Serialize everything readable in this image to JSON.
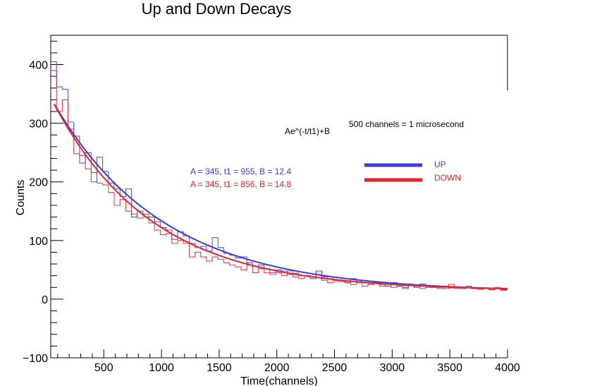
{
  "chart_data": {
    "type": "line",
    "title": "Up and Down Decays",
    "xlabel": "Time(channels)",
    "ylabel": "Counts",
    "xlim": [
      40,
      4000
    ],
    "ylim": [
      -100,
      450
    ],
    "x_ticks": [
      500,
      1000,
      1500,
      2000,
      2500,
      3000,
      3500,
      4000
    ],
    "y_ticks": [
      -100,
      0,
      100,
      200,
      300,
      400
    ],
    "grid": false,
    "annotations": {
      "formula": "Ae^(-t/t1)+B",
      "conversion": "500 channels = 1 microsecond",
      "fit_up": "A = 345, t1 = 955, B = 12.4",
      "fit_down": "A = 345, t1 = 856, B = 14.8"
    },
    "colors": {
      "up": "#3b3bd6",
      "down": "#e8222a"
    },
    "series": [
      {
        "name": "UP",
        "kind": "histogram",
        "bin_width": 50,
        "x_start": 40,
        "values": [
          405,
          362,
          358,
          302,
          278,
          232,
          250,
          200,
          242,
          218,
          198,
          188,
          175,
          188,
          140,
          150,
          145,
          140,
          132,
          122,
          118,
          102,
          115,
          108,
          95,
          88,
          90,
          82,
          105,
          88,
          78,
          75,
          70,
          72,
          62,
          56,
          58,
          52,
          45,
          50,
          48,
          42,
          44,
          40,
          40,
          35,
          48,
          38,
          35,
          32,
          30,
          28,
          35,
          30,
          28,
          25,
          30,
          25,
          22,
          28,
          22,
          20,
          25,
          20,
          26,
          22,
          20,
          18,
          22,
          19,
          20,
          18,
          22,
          18,
          17,
          19,
          16,
          18,
          15,
          16
        ]
      },
      {
        "name": "DOWN",
        "kind": "histogram",
        "bin_width": 50,
        "x_start": 40,
        "values": [
          390,
          320,
          340,
          290,
          248,
          245,
          222,
          216,
          198,
          195,
          182,
          160,
          170,
          150,
          145,
          138,
          140,
          130,
          118,
          110,
          112,
          95,
          100,
          95,
          72,
          80,
          72,
          65,
          72,
          68,
          62,
          58,
          55,
          50,
          58,
          45,
          52,
          45,
          42,
          45,
          40,
          48,
          38,
          35,
          40,
          38,
          48,
          32,
          28,
          30,
          30,
          28,
          25,
          28,
          22,
          25,
          28,
          22,
          22,
          20,
          22,
          18,
          25,
          22,
          18,
          20,
          22,
          20,
          18,
          25,
          18,
          20,
          20,
          18,
          17,
          18,
          16,
          20,
          16,
          17
        ]
      },
      {
        "name": "UP",
        "kind": "fit",
        "model": "exponential",
        "A": 345,
        "t1": 955,
        "B": 12.4
      },
      {
        "name": "DOWN",
        "kind": "fit",
        "model": "exponential",
        "A": 345,
        "t1": 856,
        "B": 14.8
      }
    ]
  }
}
